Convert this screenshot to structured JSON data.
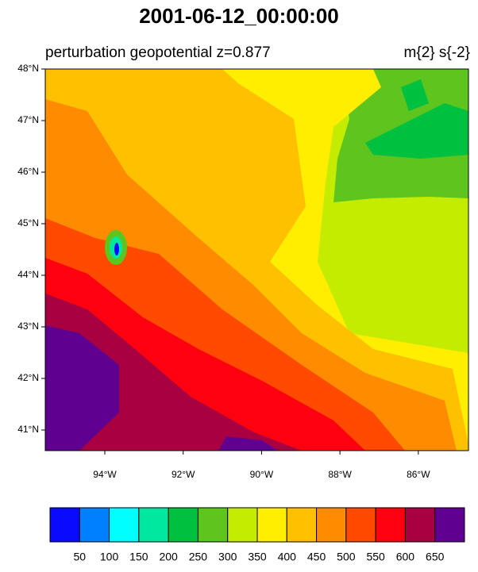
{
  "title": "2001-06-12_00:00:00",
  "left_string": "perturbation geopotential  z=0.877",
  "right_string": "m{2} s{-2}",
  "map": {
    "lon_range": [
      -95.52,
      -84.72
    ],
    "lat_range": [
      40.6,
      48
    ],
    "lat_ticks": [
      {
        "value": 41,
        "label": "41°N"
      },
      {
        "value": 42,
        "label": "42°N"
      },
      {
        "value": 43,
        "label": "43°N"
      },
      {
        "value": 44,
        "label": "44°N"
      },
      {
        "value": 45,
        "label": "45°N"
      },
      {
        "value": 46,
        "label": "46°N"
      },
      {
        "value": 47,
        "label": "47°N"
      },
      {
        "value": 48,
        "label": "48°N"
      }
    ],
    "lon_ticks": [
      {
        "value": -94,
        "label": "94°W"
      },
      {
        "value": -92,
        "label": "92°W"
      },
      {
        "value": -90,
        "label": "90°W"
      },
      {
        "value": -88,
        "label": "88°W"
      },
      {
        "value": -86,
        "label": "86°W"
      }
    ]
  },
  "colorbar": {
    "levels": [
      50,
      100,
      150,
      200,
      250,
      300,
      350,
      400,
      450,
      500,
      550,
      600,
      650
    ],
    "colors": [
      "#0a0aff",
      "#0080ff",
      "#00ffff",
      "#00e8a0",
      "#00c040",
      "#5ec41e",
      "#c4ec00",
      "#ffee00",
      "#ffc000",
      "#ff8c00",
      "#ff4a00",
      "#ff0010",
      "#a80040",
      "#600090"
    ]
  }
}
